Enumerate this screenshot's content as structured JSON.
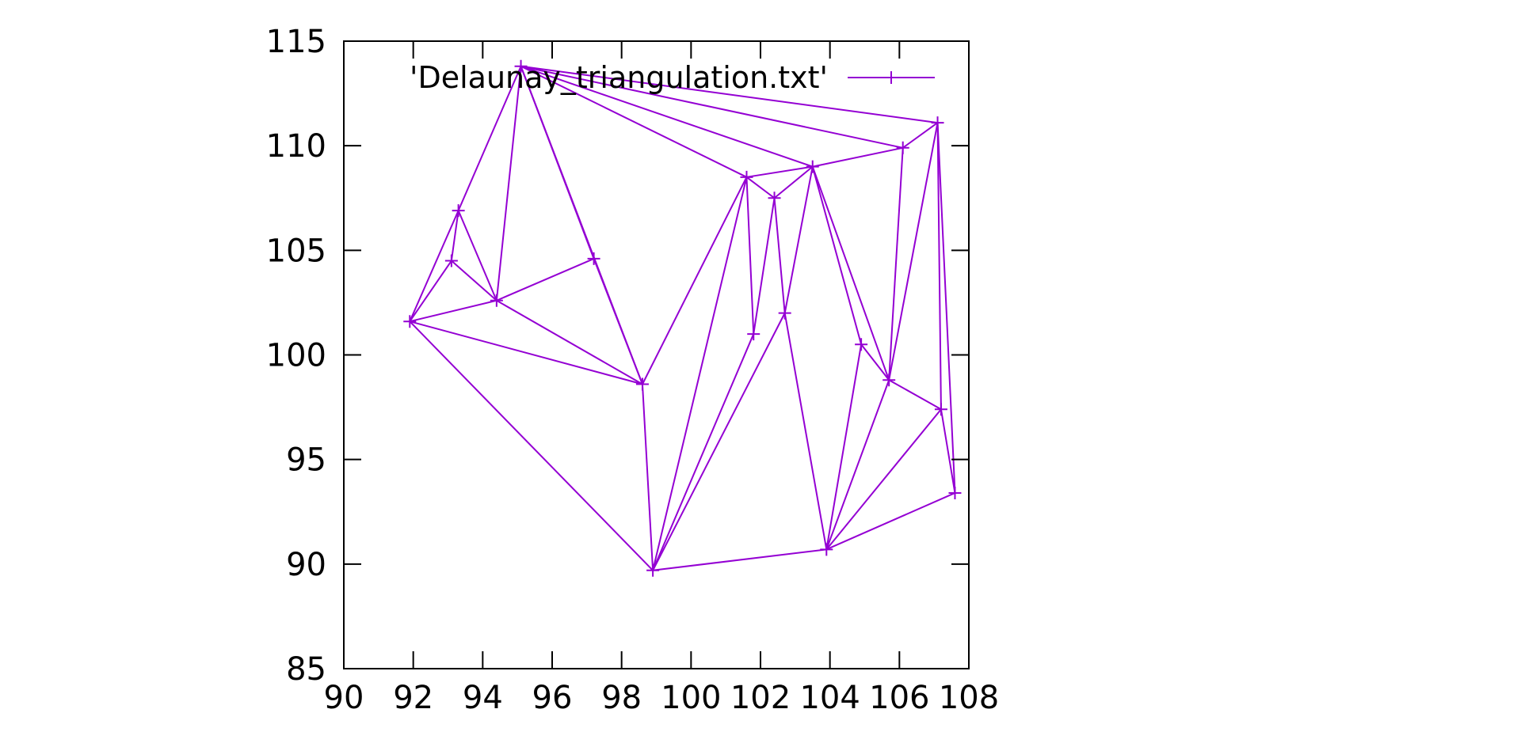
{
  "chart_data": {
    "type": "line",
    "title": "",
    "xlabel": "",
    "ylabel": "",
    "xlim": [
      90,
      108
    ],
    "ylim": [
      85,
      115
    ],
    "x_ticks": [
      90,
      92,
      94,
      96,
      98,
      100,
      102,
      104,
      106,
      108
    ],
    "y_ticks": [
      85,
      90,
      95,
      100,
      105,
      110,
      115
    ],
    "grid": false,
    "legend_position": "top-right",
    "color": "#9400d3",
    "marker": "plus",
    "series": [
      {
        "name": "'Delaunay_triangulation.txt'",
        "points": [
          [
            91.9,
            101.6
          ],
          [
            93.1,
            104.5
          ],
          [
            93.3,
            106.9
          ],
          [
            94.4,
            102.6
          ],
          [
            95.1,
            113.8
          ],
          [
            97.2,
            104.6
          ],
          [
            98.6,
            98.6
          ],
          [
            98.9,
            89.7
          ],
          [
            101.6,
            108.5
          ],
          [
            101.8,
            101.0
          ],
          [
            102.4,
            107.5
          ],
          [
            102.7,
            102.0
          ],
          [
            103.5,
            109.0
          ],
          [
            103.9,
            90.7
          ],
          [
            104.9,
            100.5
          ],
          [
            105.7,
            98.8
          ],
          [
            106.1,
            109.9
          ],
          [
            107.1,
            111.1
          ],
          [
            107.2,
            97.4
          ],
          [
            107.6,
            93.4
          ]
        ],
        "edges": [
          [
            0,
            1
          ],
          [
            0,
            2
          ],
          [
            1,
            2
          ],
          [
            1,
            3
          ],
          [
            2,
            3
          ],
          [
            2,
            4
          ],
          [
            0,
            3
          ],
          [
            3,
            4
          ],
          [
            3,
            5
          ],
          [
            3,
            6
          ],
          [
            0,
            6
          ],
          [
            0,
            7
          ],
          [
            4,
            5
          ],
          [
            5,
            6
          ],
          [
            4,
            6
          ],
          [
            6,
            7
          ],
          [
            6,
            8
          ],
          [
            4,
            8
          ],
          [
            4,
            12
          ],
          [
            4,
            16
          ],
          [
            4,
            17
          ],
          [
            8,
            7
          ],
          [
            8,
            9
          ],
          [
            8,
            10
          ],
          [
            8,
            12
          ],
          [
            9,
            10
          ],
          [
            9,
            7
          ],
          [
            10,
            11
          ],
          [
            10,
            12
          ],
          [
            11,
            7
          ],
          [
            11,
            12
          ],
          [
            11,
            13
          ],
          [
            7,
            13
          ],
          [
            12,
            14
          ],
          [
            12,
            15
          ],
          [
            12,
            16
          ],
          [
            13,
            14
          ],
          [
            14,
            15
          ],
          [
            13,
            15
          ],
          [
            15,
            16
          ],
          [
            15,
            17
          ],
          [
            15,
            18
          ],
          [
            16,
            17
          ],
          [
            17,
            18
          ],
          [
            17,
            19
          ],
          [
            18,
            19
          ],
          [
            18,
            13
          ],
          [
            19,
            13
          ]
        ]
      }
    ]
  }
}
